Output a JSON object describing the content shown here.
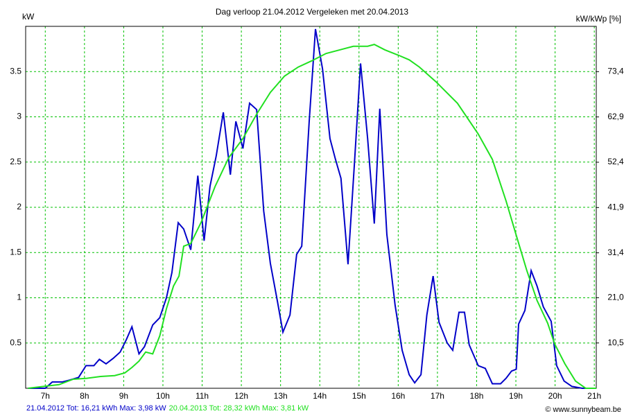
{
  "chart_data": {
    "type": "line",
    "title": "Dag  verloop 21.04.2012   Vergeleken met 20.04.2013",
    "y_label": "kW",
    "y2_label": "kW/kWp [%]",
    "credit": "© www.sunnybeam.be",
    "xlim": [
      6.5,
      21.05
    ],
    "xticks": [
      {
        "value": 7,
        "label": "7h"
      },
      {
        "value": 8,
        "label": "8h"
      },
      {
        "value": 9,
        "label": "9h"
      },
      {
        "value": 10,
        "label": "10h"
      },
      {
        "value": 11,
        "label": "11h"
      },
      {
        "value": 12,
        "label": "12h"
      },
      {
        "value": 13,
        "label": "13h"
      },
      {
        "value": 14,
        "label": "14h"
      },
      {
        "value": 15,
        "label": "15h"
      },
      {
        "value": 16,
        "label": "16h"
      },
      {
        "value": 17,
        "label": "17h"
      },
      {
        "value": 18,
        "label": "18h"
      },
      {
        "value": 19,
        "label": "19h"
      },
      {
        "value": 20,
        "label": "20h"
      },
      {
        "value": 21,
        "label": "21h"
      }
    ],
    "ylim": [
      0,
      4.0
    ],
    "yticks": [
      0.5,
      1,
      1.5,
      2,
      2.5,
      3,
      3.5
    ],
    "y2lim": [
      0,
      83.9
    ],
    "y2ticks": [
      {
        "value": 10.5,
        "label": "10,5"
      },
      {
        "value": 21.0,
        "label": "21,0"
      },
      {
        "value": 31.4,
        "label": "31,4"
      },
      {
        "value": 41.9,
        "label": "41,9"
      },
      {
        "value": 52.4,
        "label": "52,4"
      },
      {
        "value": 62.9,
        "label": "62,9"
      },
      {
        "value": 73.4,
        "label": "73,4"
      }
    ],
    "grid": true,
    "grid_color": "#00c000",
    "series": [
      {
        "name": "21.04.2012 Tot: 16,21 kWh Max: 3,98 kW",
        "color": "#0000c8",
        "x": [
          6.56,
          7.0,
          7.18,
          7.44,
          7.62,
          7.85,
          8.04,
          8.24,
          8.38,
          8.55,
          8.73,
          8.91,
          9.07,
          9.21,
          9.39,
          9.53,
          9.74,
          9.92,
          10.09,
          10.23,
          10.39,
          10.53,
          10.71,
          10.89,
          11.05,
          11.2,
          11.36,
          11.54,
          11.72,
          11.86,
          12.04,
          12.21,
          12.39,
          12.57,
          12.74,
          12.92,
          13.06,
          13.24,
          13.41,
          13.54,
          13.73,
          13.89,
          14.07,
          14.26,
          14.4,
          14.54,
          14.72,
          14.88,
          15.04,
          15.22,
          15.39,
          15.53,
          15.71,
          15.92,
          16.1,
          16.28,
          16.42,
          16.58,
          16.73,
          16.89,
          17.04,
          17.25,
          17.39,
          17.55,
          17.69,
          17.81,
          18.04,
          18.22,
          18.4,
          18.61,
          18.75,
          18.89,
          19.01,
          19.07,
          19.23,
          19.39,
          19.54,
          19.7,
          19.9,
          20.04,
          20.23,
          20.43,
          20.69,
          21.05
        ],
        "values": [
          0,
          0,
          0.07,
          0.07,
          0.09,
          0.12,
          0.25,
          0.25,
          0.32,
          0.27,
          0.33,
          0.4,
          0.54,
          0.68,
          0.38,
          0.46,
          0.7,
          0.78,
          1.0,
          1.28,
          1.83,
          1.76,
          1.53,
          2.35,
          1.63,
          2.23,
          2.57,
          3.05,
          2.36,
          2.95,
          2.65,
          3.15,
          3.08,
          1.96,
          1.38,
          0.96,
          0.62,
          0.81,
          1.48,
          1.57,
          2.95,
          3.97,
          3.53,
          2.76,
          2.53,
          2.32,
          1.37,
          2.46,
          3.59,
          2.76,
          1.82,
          3.09,
          1.7,
          0.92,
          0.42,
          0.15,
          0.06,
          0.15,
          0.81,
          1.24,
          0.73,
          0.5,
          0.42,
          0.84,
          0.84,
          0.48,
          0.25,
          0.22,
          0.05,
          0.05,
          0.11,
          0.19,
          0.21,
          0.71,
          0.86,
          1.3,
          1.13,
          0.9,
          0.74,
          0.25,
          0.08,
          0.02,
          0,
          0
        ]
      },
      {
        "name": "20.04.2013 Tot: 28,32 kWh Max: 3,81 kW",
        "color": "#20e020",
        "x": [
          6.56,
          7.35,
          7.71,
          8.06,
          8.41,
          8.77,
          9.03,
          9.21,
          9.39,
          9.56,
          9.74,
          9.92,
          10.09,
          10.27,
          10.41,
          10.53,
          10.71,
          10.98,
          11.33,
          11.68,
          12.04,
          12.39,
          12.74,
          13.1,
          13.45,
          13.8,
          14.16,
          14.51,
          14.86,
          15.22,
          15.39,
          15.66,
          16.01,
          16.28,
          16.54,
          16.98,
          17.51,
          18.04,
          18.4,
          18.75,
          19.01,
          19.28,
          19.54,
          19.81,
          19.99,
          20.25,
          20.52,
          20.78,
          21.05
        ],
        "values": [
          0,
          0.04,
          0.1,
          0.11,
          0.13,
          0.14,
          0.17,
          0.23,
          0.3,
          0.4,
          0.38,
          0.58,
          0.88,
          1.13,
          1.24,
          1.57,
          1.6,
          1.84,
          2.23,
          2.55,
          2.76,
          3.03,
          3.27,
          3.45,
          3.55,
          3.62,
          3.7,
          3.74,
          3.78,
          3.78,
          3.8,
          3.74,
          3.68,
          3.63,
          3.55,
          3.38,
          3.15,
          2.81,
          2.53,
          2.07,
          1.69,
          1.3,
          0.97,
          0.72,
          0.49,
          0.27,
          0.08,
          0,
          0
        ]
      }
    ]
  }
}
